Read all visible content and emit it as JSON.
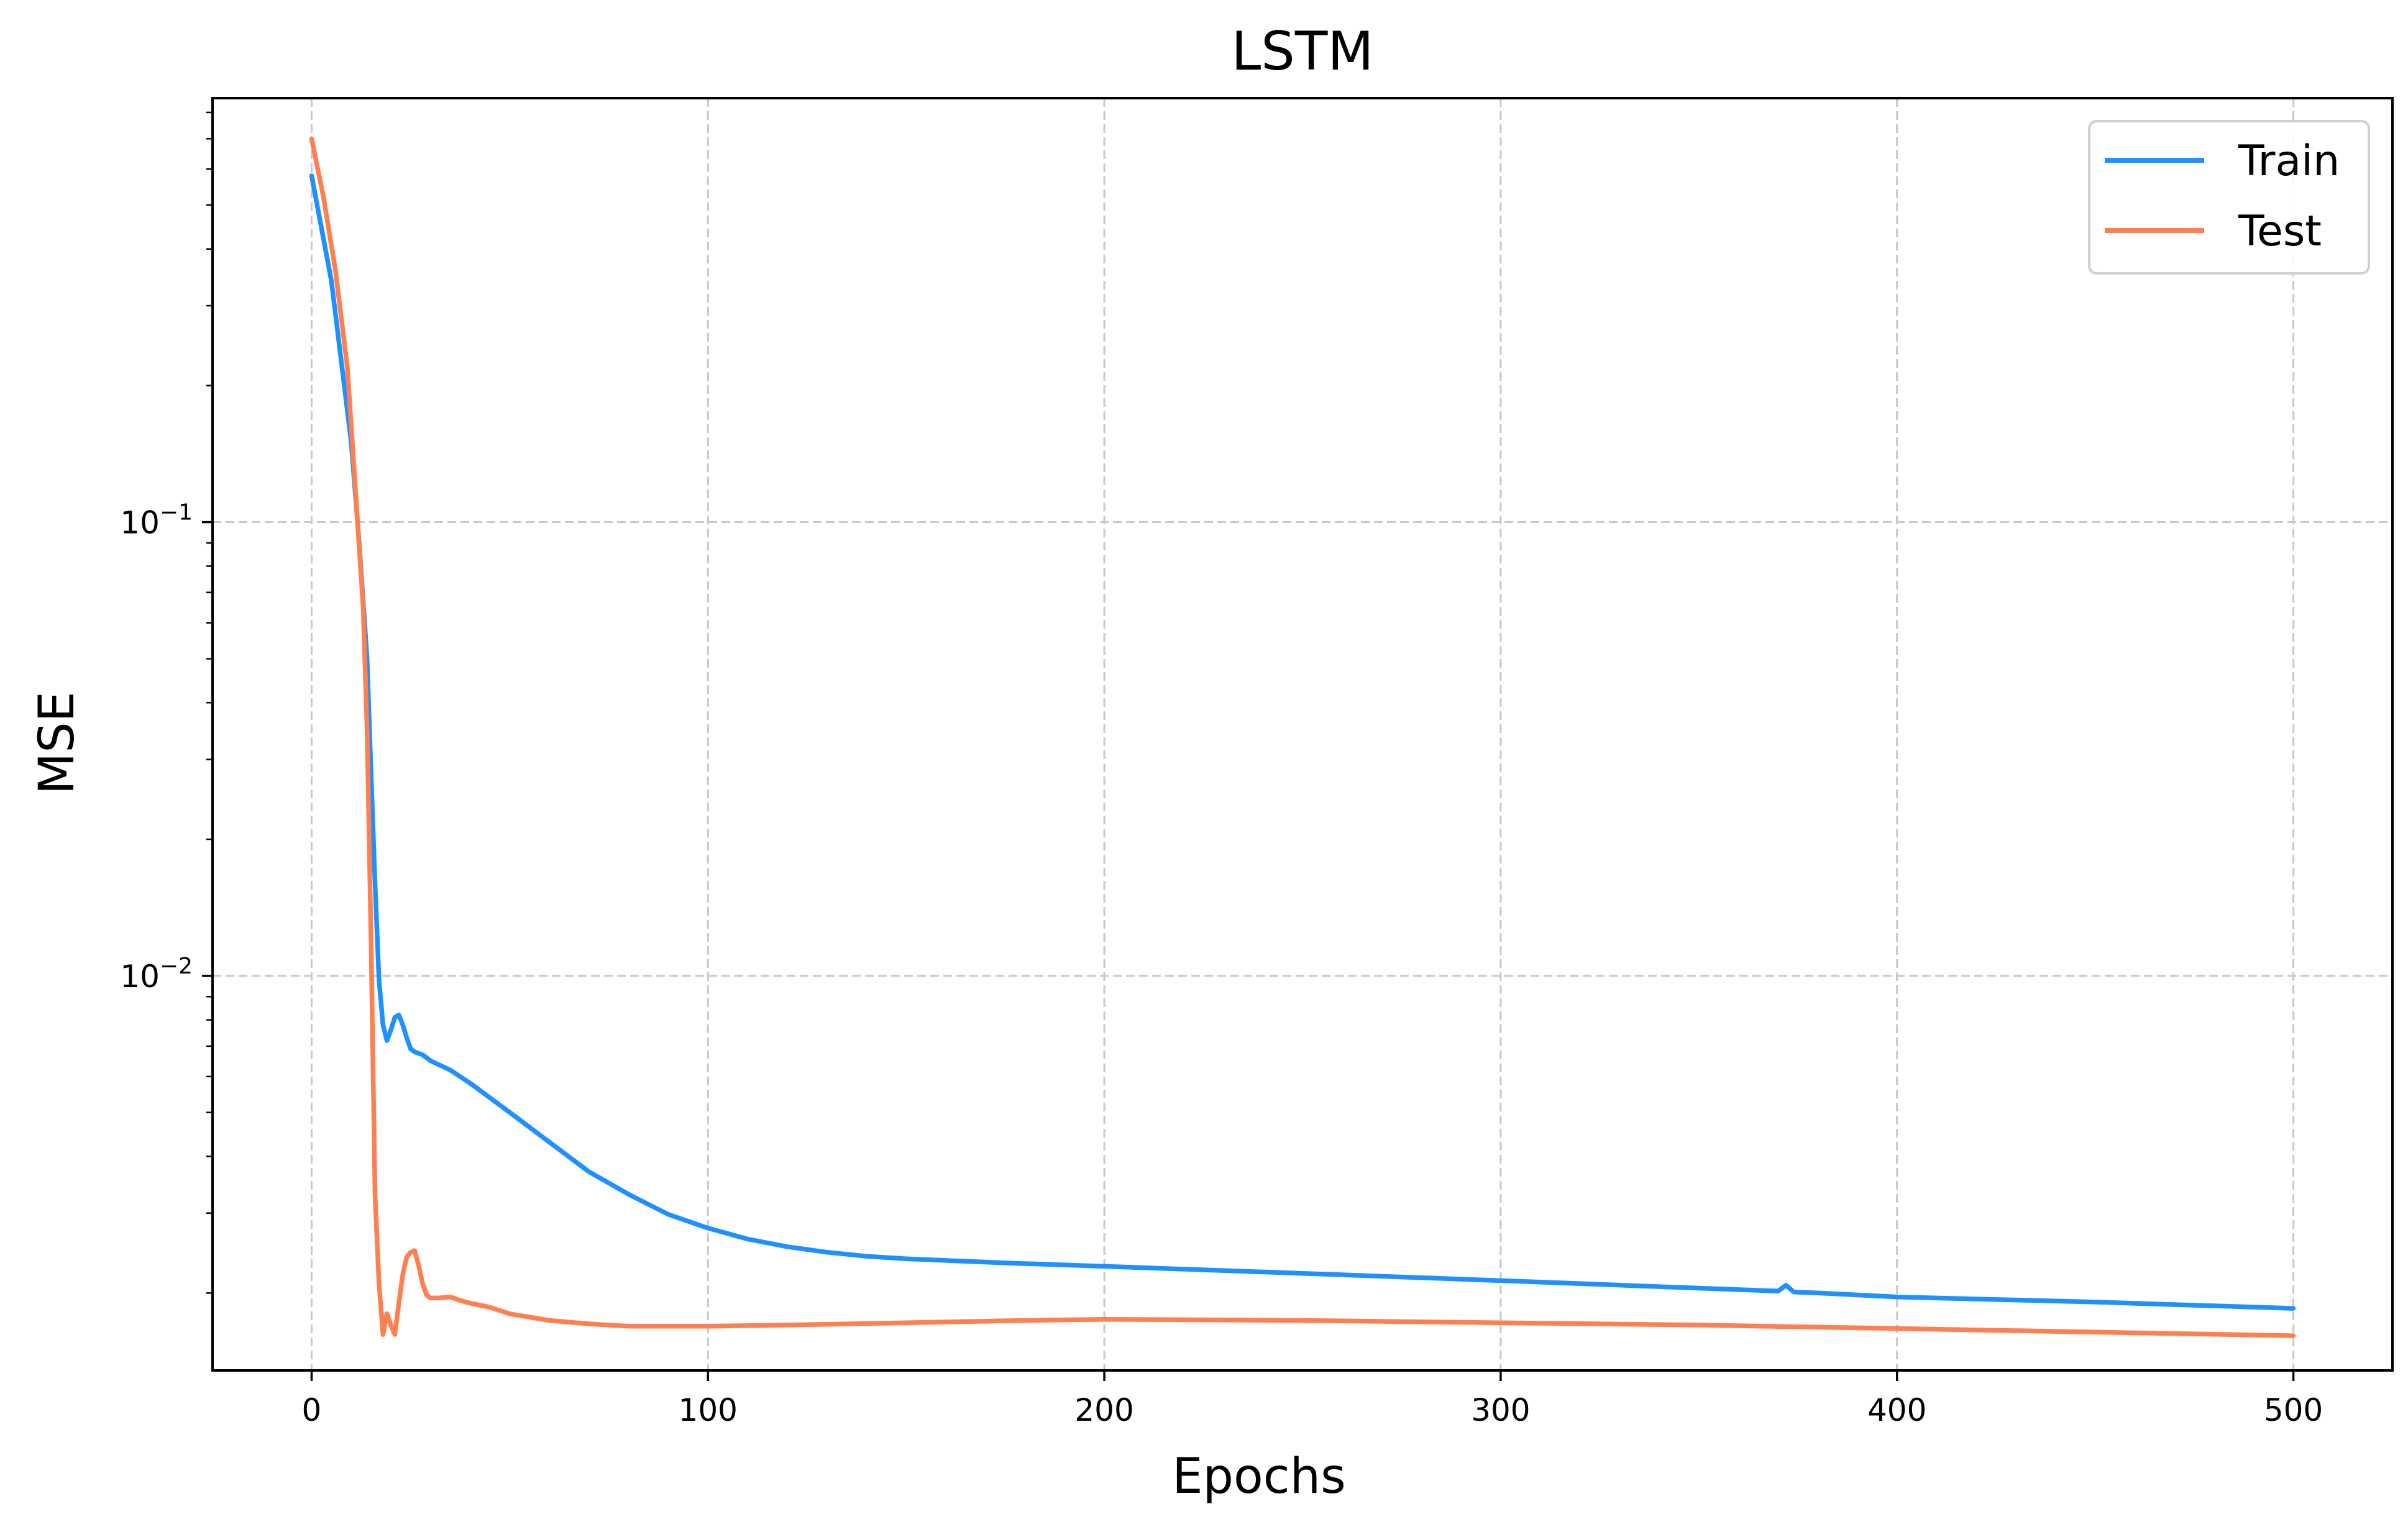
{
  "chart_data": {
    "type": "line",
    "title": "LSTM",
    "xlabel": "Epochs",
    "ylabel": "MSE",
    "xlim": [
      -25,
      525
    ],
    "ylim": [
      0.00135,
      0.86
    ],
    "yscale": "log",
    "grid": true,
    "legend_position": "top-right",
    "x_ticks": [
      0,
      100,
      200,
      300,
      400,
      500
    ],
    "x_tick_labels": [
      "0",
      "100",
      "200",
      "300",
      "400",
      "500"
    ],
    "y_ticks": [
      0.1,
      0.01
    ],
    "y_tick_labels": [
      {
        "base": "10",
        "exp": "−1"
      },
      {
        "base": "10",
        "exp": "−2"
      }
    ],
    "series": [
      {
        "name": "Train",
        "color": "#1E90FF",
        "x": [
          0,
          5,
          10,
          12,
          14,
          15,
          16,
          17,
          18,
          19,
          20,
          21,
          22,
          23,
          24,
          25,
          26,
          28,
          30,
          35,
          40,
          50,
          60,
          70,
          80,
          90,
          100,
          110,
          120,
          130,
          140,
          150,
          175,
          200,
          250,
          300,
          350,
          370,
          372,
          374,
          380,
          400,
          450,
          500
        ],
        "y": [
          0.58,
          0.34,
          0.15,
          0.09,
          0.05,
          0.028,
          0.016,
          0.0098,
          0.0078,
          0.0072,
          0.0076,
          0.0081,
          0.0082,
          0.0078,
          0.0073,
          0.0069,
          0.0068,
          0.0067,
          0.0065,
          0.0062,
          0.0058,
          0.005,
          0.0043,
          0.0037,
          0.0033,
          0.00298,
          0.00278,
          0.00263,
          0.00253,
          0.00246,
          0.00241,
          0.00238,
          0.00233,
          0.00229,
          0.00221,
          0.00213,
          0.00205,
          0.00202,
          0.00208,
          0.00201,
          0.002,
          0.00196,
          0.00191,
          0.00185
        ]
      },
      {
        "name": "Test",
        "color": "#FF7F50",
        "x": [
          0,
          3,
          6,
          9,
          11,
          13,
          14,
          15,
          16,
          17,
          18,
          19,
          20,
          21,
          22,
          23,
          24,
          25,
          26,
          27,
          28,
          29,
          30,
          32,
          35,
          38,
          40,
          45,
          50,
          60,
          70,
          80,
          90,
          100,
          120,
          150,
          180,
          200,
          250,
          300,
          350,
          400,
          450,
          500
        ],
        "y": [
          0.7,
          0.52,
          0.36,
          0.22,
          0.12,
          0.065,
          0.035,
          0.012,
          0.0033,
          0.0021,
          0.00162,
          0.0018,
          0.0017,
          0.00162,
          0.0019,
          0.0022,
          0.0024,
          0.00246,
          0.00248,
          0.0023,
          0.0021,
          0.00198,
          0.00195,
          0.00195,
          0.00196,
          0.00192,
          0.0019,
          0.00186,
          0.0018,
          0.00174,
          0.00171,
          0.00169,
          0.00169,
          0.00169,
          0.0017,
          0.00172,
          0.00174,
          0.00175,
          0.00174,
          0.00172,
          0.0017,
          0.00167,
          0.00164,
          0.00161
        ]
      }
    ]
  }
}
